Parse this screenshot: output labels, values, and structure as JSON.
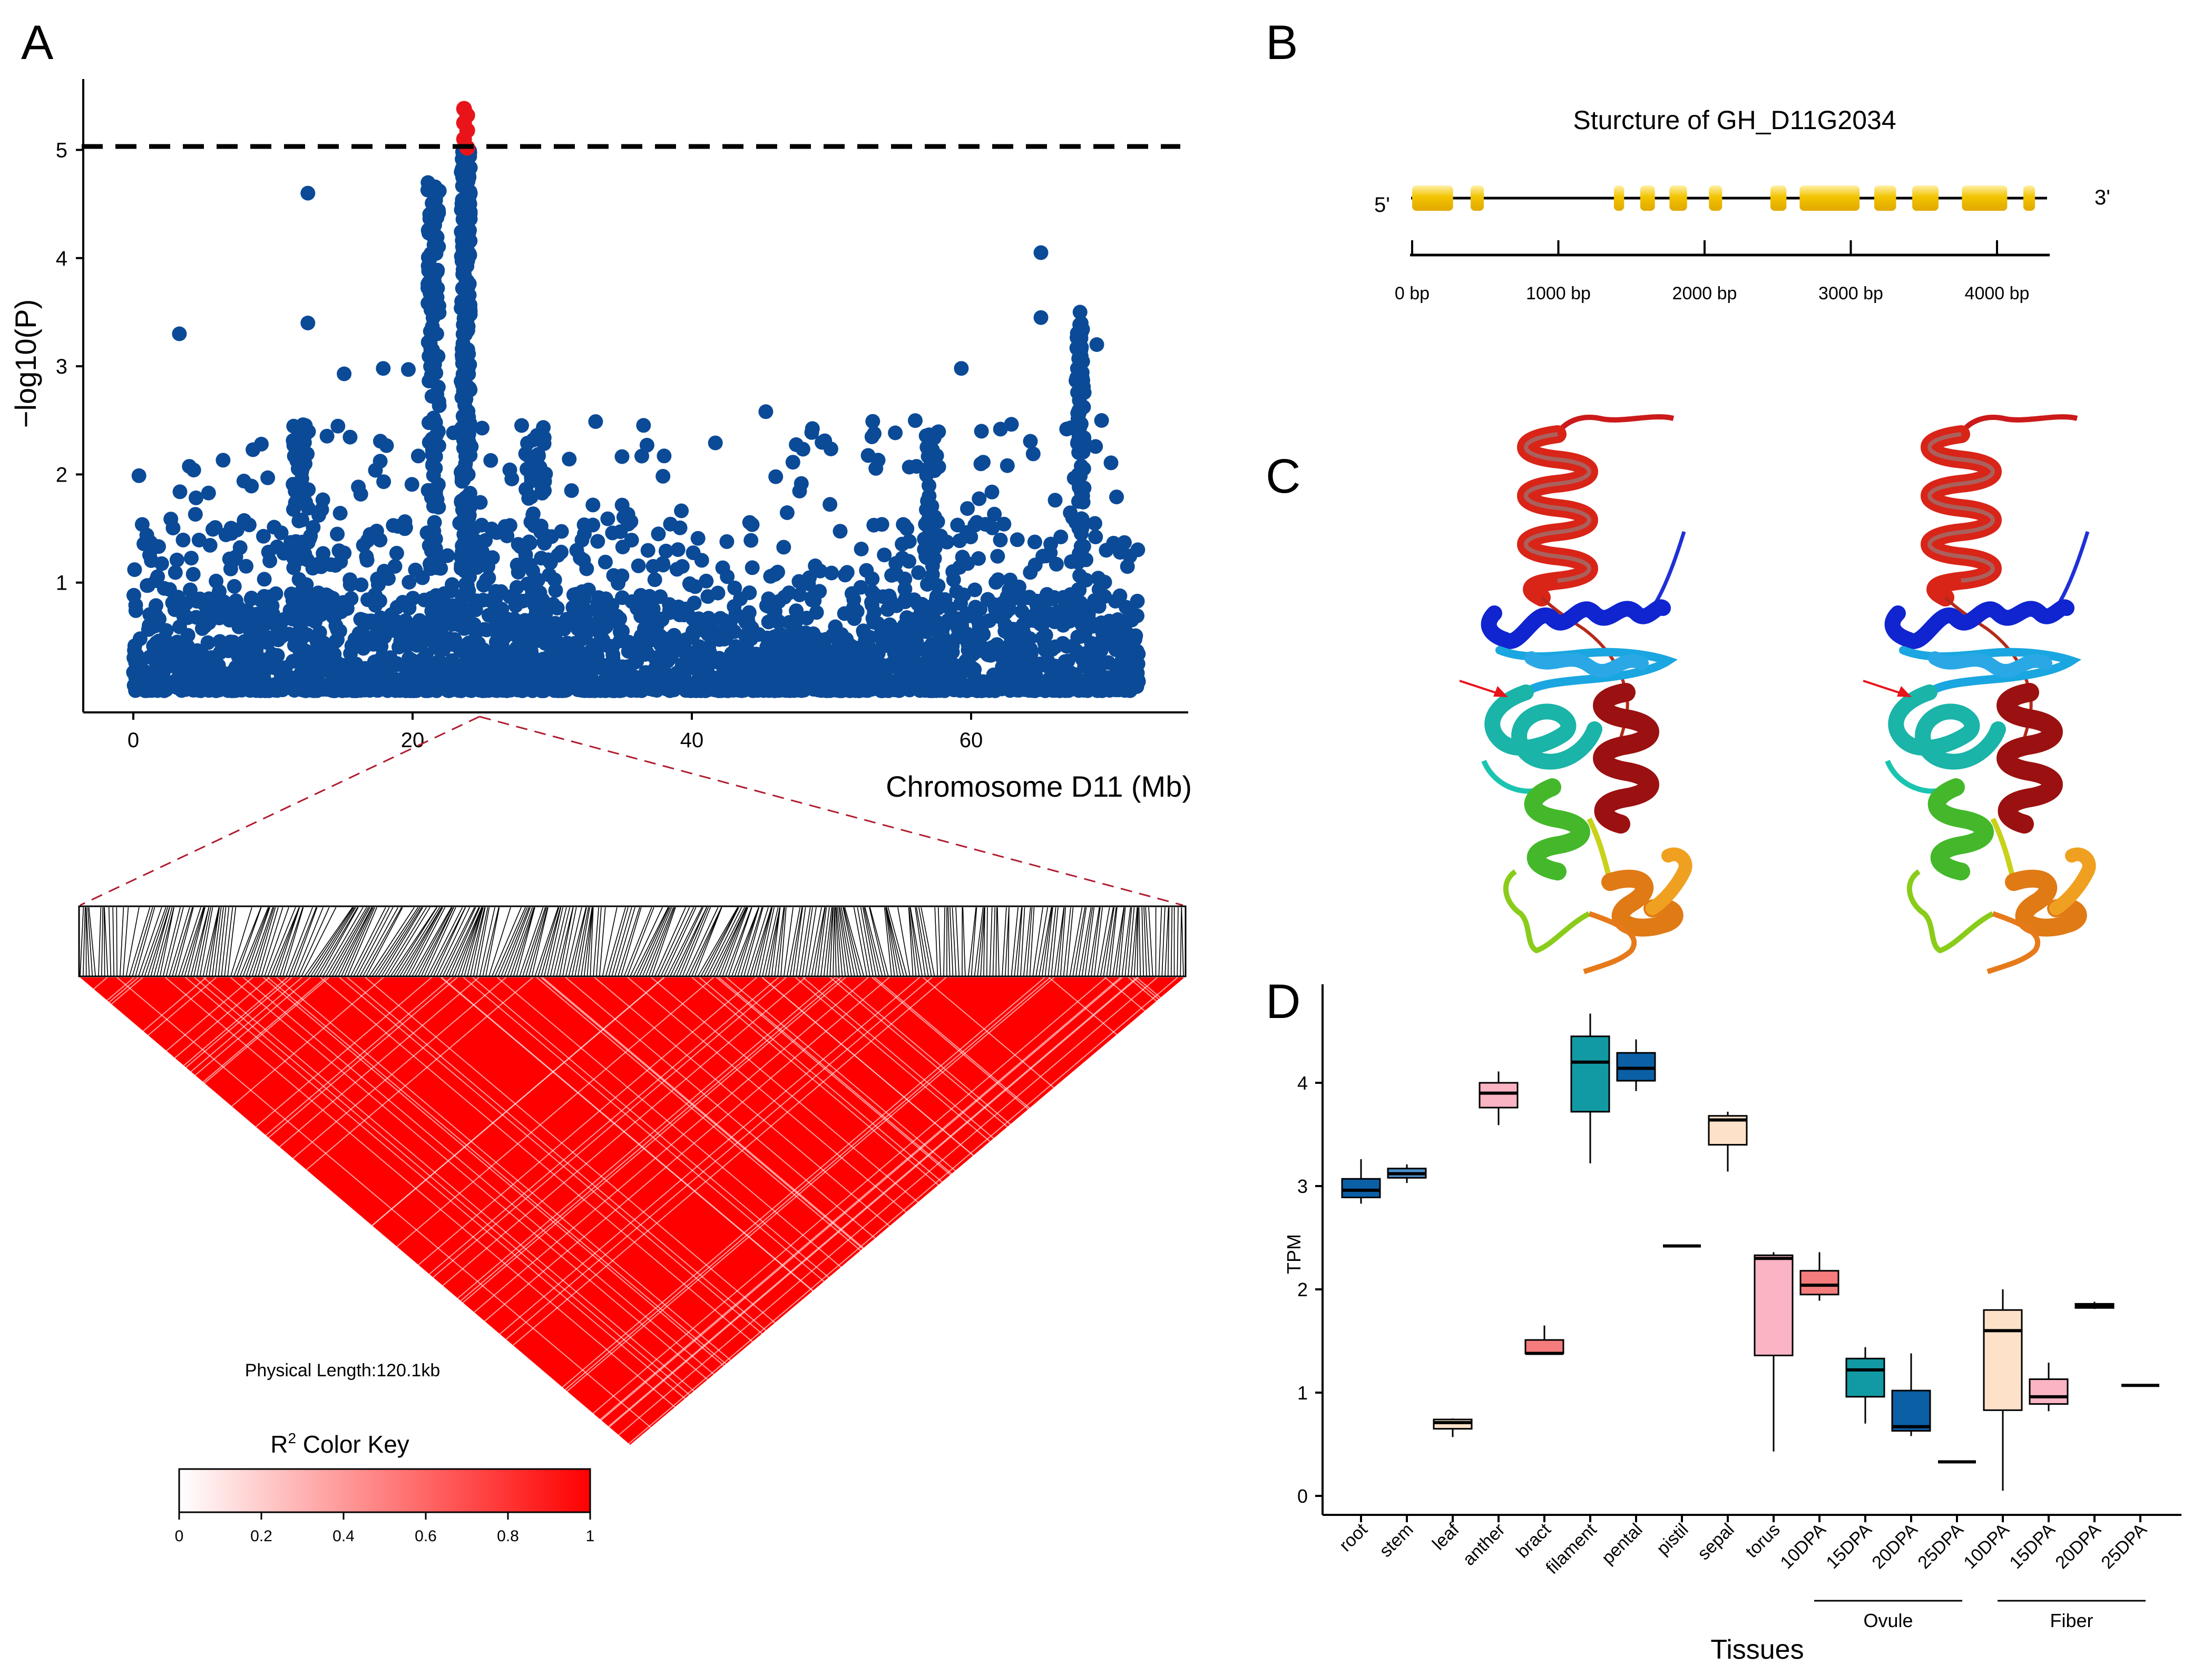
{
  "panels": {
    "a": "A",
    "b": "B",
    "c": "C",
    "d": "D"
  },
  "colors": {
    "manhattan_point": "#0b4a97",
    "manhattan_hit": "#e8141a",
    "ld_red": "#ff0000",
    "gene_exon": "#f2c400",
    "threshold_line": "#000000"
  },
  "panel_b": {
    "title": "Sturcture of GH_D11G2034",
    "five_prime": "5'",
    "three_prime": "3'",
    "scale_ticks": [
      "0 bp",
      "1000 bp",
      "2000 bp",
      "3000 bp",
      "4000 bp"
    ],
    "exons_bp": [
      [
        0,
        280
      ],
      [
        400,
        490
      ],
      [
        1380,
        1450
      ],
      [
        1560,
        1660
      ],
      [
        1760,
        1880
      ],
      [
        2030,
        2120
      ],
      [
        2450,
        2560
      ],
      [
        2650,
        3060
      ],
      [
        3160,
        3310
      ],
      [
        3420,
        3600
      ],
      [
        3760,
        4070
      ],
      [
        4180,
        4260
      ]
    ],
    "gene_length_bp": 4260
  },
  "panel_a": {
    "x_tick_labels": [
      "0",
      "20",
      "40",
      "60"
    ],
    "y_tick_labels": [
      "1",
      "2",
      "3",
      "4",
      "5"
    ],
    "ld_label": "Physical Length:120.1kb",
    "color_key_title_main": "R",
    "color_key_title_sup": "2",
    "color_key_title_rest": " Color Key",
    "color_key_ticks": [
      "0",
      "0.2",
      "0.4",
      "0.6",
      "0.8",
      "1"
    ]
  },
  "chart_data": [
    {
      "type": "scatter",
      "title": "",
      "xlabel": "Chromosome D11 (Mb)",
      "ylabel": "−log10(P)",
      "xlim": [
        -3.5,
        75
      ],
      "ylim": [
        -0.25,
        5.7
      ],
      "threshold": 5,
      "peak_x_mb": 23.8,
      "peak_max": 5.38,
      "top_points": [
        {
          "x": 12.5,
          "y": 4.6
        },
        {
          "x": 3.3,
          "y": 3.3
        },
        {
          "x": 12.5,
          "y": 3.4
        },
        {
          "x": 65.0,
          "y": 4.05
        },
        {
          "x": 65.0,
          "y": 3.45
        },
        {
          "x": 67.8,
          "y": 3.5
        },
        {
          "x": 69.0,
          "y": 3.2
        },
        {
          "x": 45.3,
          "y": 2.58
        },
        {
          "x": 59.3,
          "y": 2.98
        },
        {
          "x": 15.1,
          "y": 2.93
        },
        {
          "x": 19.7,
          "y": 2.97
        },
        {
          "x": 17.9,
          "y": 2.98
        }
      ]
    },
    {
      "type": "box",
      "title": "",
      "xlabel": "Tissues",
      "ylabel": "TPM",
      "ylim": [
        -0.1,
        4.9
      ],
      "y_ticks": [
        "0",
        "1",
        "2",
        "3",
        "4"
      ],
      "categories": [
        "root",
        "stem",
        "leaf",
        "anther",
        "bract",
        "filament",
        "pental",
        "pistil",
        "sepal",
        "torus",
        "10DPA",
        "15DPA",
        "20DPA",
        "25DPA",
        "10DPA",
        "15DPA",
        "20DPA",
        "25DPA"
      ],
      "groups": [
        {
          "name": "Ovule",
          "start": 10,
          "end": 13
        },
        {
          "name": "Fiber",
          "start": 14,
          "end": 17
        }
      ],
      "boxes": [
        {
          "min": 2.83,
          "q1": 2.89,
          "median": 2.96,
          "q3": 3.07,
          "max": 3.26,
          "color": "#0b5fa5"
        },
        {
          "min": 3.03,
          "q1": 3.08,
          "median": 3.12,
          "q3": 3.17,
          "max": 3.21,
          "color": "#4a90cc"
        },
        {
          "min": 0.57,
          "q1": 0.65,
          "median": 0.71,
          "q3": 0.74,
          "max": 0.75,
          "color": "#fde2c9"
        },
        {
          "min": 3.59,
          "q1": 3.76,
          "median": 3.9,
          "q3": 4.0,
          "max": 4.11,
          "color": "#fbb4c4"
        },
        {
          "min": 1.37,
          "q1": 1.38,
          "median": 1.38,
          "q3": 1.51,
          "max": 1.65,
          "color": "#f47c7c"
        },
        {
          "min": 3.22,
          "q1": 3.72,
          "median": 4.2,
          "q3": 4.45,
          "max": 4.67,
          "color": "#129aa4"
        },
        {
          "min": 3.92,
          "q1": 4.02,
          "median": 4.14,
          "q3": 4.29,
          "max": 4.42,
          "color": "#0b5fa5"
        },
        {
          "min": 2.42,
          "q1": 2.42,
          "median": 2.42,
          "q3": 2.42,
          "max": 2.42,
          "color": "#fbb4c4"
        },
        {
          "min": 3.14,
          "q1": 3.4,
          "median": 3.64,
          "q3": 3.68,
          "max": 3.72,
          "color": "#fde2c9"
        },
        {
          "min": 0.43,
          "q1": 1.36,
          "median": 2.3,
          "q3": 2.33,
          "max": 2.36,
          "color": "#fbb4c4"
        },
        {
          "min": 1.89,
          "q1": 1.95,
          "median": 2.04,
          "q3": 2.18,
          "max": 2.36,
          "color": "#f47c7c"
        },
        {
          "min": 0.7,
          "q1": 0.96,
          "median": 1.22,
          "q3": 1.33,
          "max": 1.44,
          "color": "#129aa4"
        },
        {
          "min": 0.58,
          "q1": 0.63,
          "median": 0.67,
          "q3": 1.02,
          "max": 1.38,
          "color": "#0b5fa5"
        },
        {
          "min": 0.33,
          "q1": 0.33,
          "median": 0.33,
          "q3": 0.33,
          "max": 0.33,
          "color": "#4a90cc"
        },
        {
          "min": 0.05,
          "q1": 0.83,
          "median": 1.6,
          "q3": 1.8,
          "max": 2.0,
          "color": "#fde2c9"
        },
        {
          "min": 0.82,
          "q1": 0.89,
          "median": 0.96,
          "q3": 1.13,
          "max": 1.29,
          "color": "#fbb4c4"
        },
        {
          "min": 1.81,
          "q1": 1.82,
          "median": 1.84,
          "q3": 1.86,
          "max": 1.88,
          "color": "#f47c7c"
        },
        {
          "min": 1.07,
          "q1": 1.07,
          "median": 1.07,
          "q3": 1.07,
          "max": 1.07,
          "color": "#129aa4"
        }
      ]
    }
  ]
}
